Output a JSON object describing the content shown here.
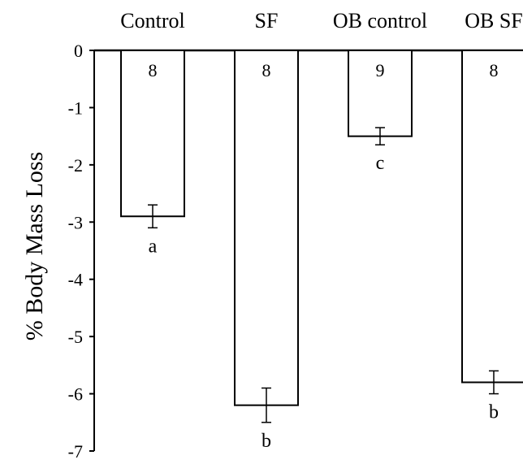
{
  "chart_data": {
    "type": "bar",
    "title": "",
    "xlabel": "",
    "ylabel": "% Body Mass Loss",
    "categories": [
      "Control",
      "SF",
      "OB control",
      "OB SF"
    ],
    "values": [
      -2.9,
      -6.2,
      -1.5,
      -5.8
    ],
    "error": [
      0.2,
      0.3,
      0.15,
      0.2
    ],
    "sample_sizes": [
      "8",
      "8",
      "9",
      "8"
    ],
    "significance_letters": [
      "a",
      "b",
      "c",
      "b"
    ],
    "ylim": [
      -7,
      0
    ],
    "yticks": [
      "0",
      "-1",
      "-2",
      "-3",
      "-4",
      "-5",
      "-6",
      "-7"
    ],
    "grid": false,
    "legend": "none",
    "colors": {
      "bar_fill": "#ffffff",
      "bar_stroke": "#000000",
      "axis": "#000000"
    }
  }
}
